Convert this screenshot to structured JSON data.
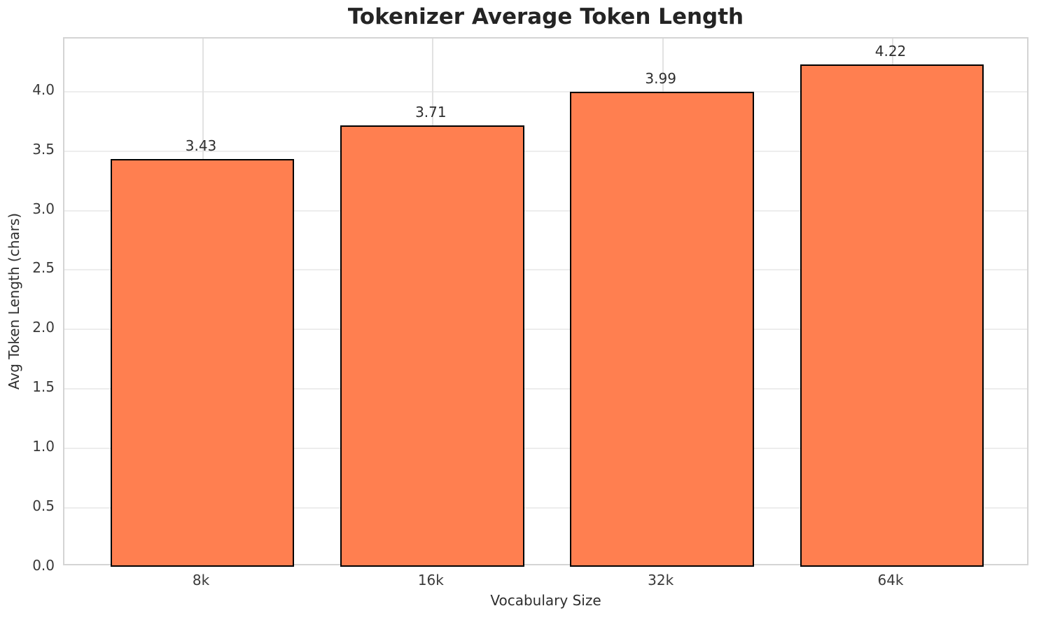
{
  "chart_data": {
    "type": "bar",
    "title": "Tokenizer Average Token Length",
    "xlabel": "Vocabulary Size",
    "ylabel": "Avg Token Length (chars)",
    "categories": [
      "8k",
      "16k",
      "32k",
      "64k"
    ],
    "values": [
      3.43,
      3.71,
      3.99,
      4.22
    ],
    "value_labels": [
      "3.43",
      "3.71",
      "3.99",
      "4.22"
    ],
    "y_ticks": [
      0.0,
      0.5,
      1.0,
      1.5,
      2.0,
      2.5,
      3.0,
      3.5,
      4.0
    ],
    "y_tick_labels": [
      "0.0",
      "0.5",
      "1.0",
      "1.5",
      "2.0",
      "2.5",
      "3.0",
      "3.5",
      "4.0"
    ],
    "ylim": [
      0,
      4.44
    ],
    "grid": true,
    "legend_position": "none",
    "bar_width_fraction": 0.8,
    "x_margin_slots": 0.6,
    "colors": {
      "bar_fill": "#FF7F50",
      "bar_edge": "#000000",
      "grid": "#ededed",
      "spine": "#d4d4d4",
      "title_text": "#242424",
      "tick_text": "#3a3a3a",
      "label_text": "#2e2e2e",
      "background": "#ffffff"
    }
  }
}
